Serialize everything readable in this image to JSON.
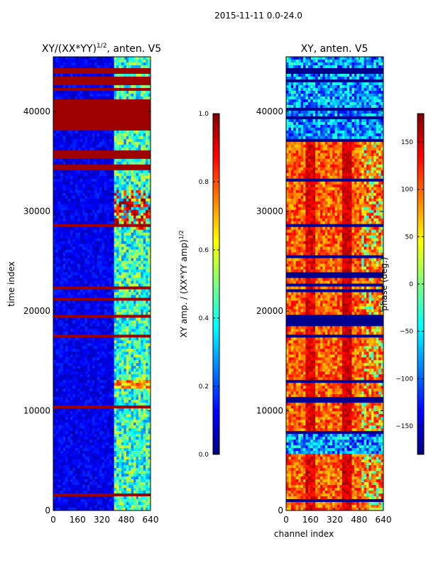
{
  "figure_title": "2015-11-11 0.0-24.0",
  "colormap": [
    "#00007f",
    "#0000ff",
    "#007fff",
    "#00ffff",
    "#7fff7f",
    "#ffff00",
    "#ff7f00",
    "#ff0000",
    "#7f0000"
  ],
  "chart_data": [
    {
      "type": "heatmap",
      "title_prefix": "XY/(XX*YY)",
      "title_sup": "1/2",
      "title_suffix": ", anten. V5",
      "xlabel": "",
      "ylabel": "time index",
      "xlim": [
        0,
        640
      ],
      "ylim": [
        0,
        45500
      ],
      "xticks": [
        0,
        160,
        320,
        480,
        640
      ],
      "yticks": [
        0,
        10000,
        20000,
        30000,
        40000
      ],
      "colorbar": {
        "label_prefix": "XY amp. / (XX*YY amp)",
        "label_sup": "1/2",
        "range": [
          0.0,
          1.0
        ],
        "ticks": [
          0.0,
          0.2,
          0.4,
          0.6,
          0.8,
          1.0
        ],
        "tick_labels": [
          "0.0",
          "0.2",
          "0.4",
          "0.6",
          "0.8",
          "1.0"
        ]
      }
    },
    {
      "type": "heatmap",
      "title_prefix": "XY, anten. V5",
      "title_sup": "",
      "title_suffix": "",
      "xlabel": "channel index",
      "ylabel": "",
      "xlim": [
        0,
        640
      ],
      "ylim": [
        0,
        45500
      ],
      "xticks": [
        0,
        160,
        320,
        480,
        640
      ],
      "yticks": [
        0,
        10000,
        20000,
        30000,
        40000
      ],
      "colorbar": {
        "label_prefix": "phase (deg.)",
        "label_sup": "",
        "range": [
          -180,
          180
        ],
        "ticks": [
          -150,
          -100,
          -50,
          0,
          50,
          100,
          150
        ],
        "tick_labels": [
          "−150",
          "−100",
          "−50",
          "0",
          "50",
          "100",
          "150"
        ]
      }
    }
  ]
}
